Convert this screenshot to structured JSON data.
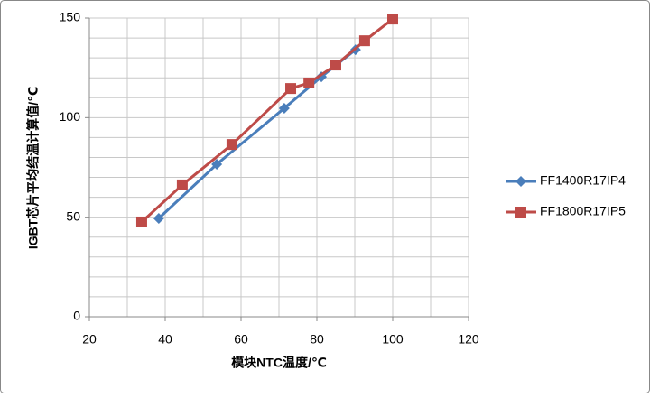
{
  "chart_data": {
    "type": "scatter-line",
    "x_label": "模块NTC温度/℃",
    "y_label": "IGBT芯片平均结温计算值/℃",
    "xlim": [
      20,
      120
    ],
    "xticks": [
      20,
      40,
      60,
      80,
      100,
      120
    ],
    "ylim": [
      0,
      150
    ],
    "yticks": [
      0,
      50,
      100,
      150
    ],
    "x_grid": [
      30,
      40,
      50,
      60,
      70,
      80,
      90,
      100,
      110,
      120
    ],
    "y_grid": [
      10,
      20,
      30,
      40,
      50,
      60,
      70,
      80,
      90,
      100,
      110,
      120,
      130,
      140,
      150
    ],
    "legend": "right",
    "series": [
      {
        "name": "FF1400R17IP4",
        "color": "#4a7ebb",
        "marker": "diamond",
        "x": [
          38.3,
          53.6,
          71.4,
          81.2,
          90.2
        ],
        "values": [
          49.4,
          76.6,
          104.7,
          120.5,
          134.1
        ]
      },
      {
        "name": "FF1800R17IP5",
        "color": "#be4b48",
        "marker": "square",
        "x": [
          33.8,
          44.5,
          57.6,
          73.1,
          77.9,
          85,
          92.6,
          100
        ],
        "values": [
          47.6,
          66.2,
          86.5,
          114.6,
          117.4,
          126.4,
          138.6,
          149.5
        ]
      }
    ]
  }
}
